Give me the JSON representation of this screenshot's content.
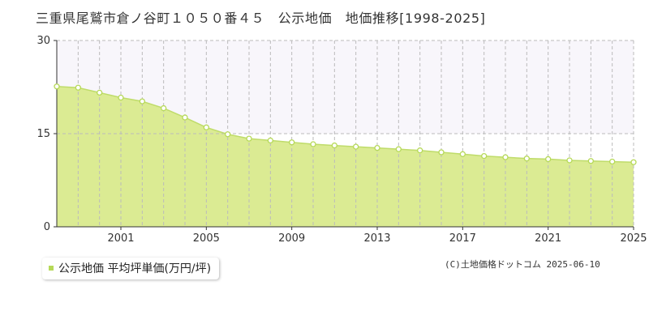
{
  "title": "三重県尾鷲市倉ノ谷町１０５０番４５　公示地価　地価推移[1998-2025]",
  "legend": {
    "label": "公示地価 平均坪単価(万円/坪)"
  },
  "copyright": "(C)土地価格ドットコム 2025-06-10",
  "colors": {
    "fill": "#dbeb93",
    "line": "#bfdc6a",
    "marker": "#b6d958",
    "grid": "#bbbbbb",
    "band": "#f8f6fb"
  },
  "chart_data": {
    "type": "area",
    "title": "",
    "xlabel": "",
    "ylabel": "",
    "xlim": [
      1998,
      2025
    ],
    "ylim": [
      0,
      30
    ],
    "y_ticks": [
      0,
      15,
      30
    ],
    "x_ticks": [
      2001,
      2005,
      2009,
      2013,
      2017,
      2021,
      2025
    ],
    "grid": true,
    "series": [
      {
        "x": [
          1998,
          1999,
          2000,
          2001,
          2002,
          2003,
          2004,
          2005,
          2006,
          2007,
          2008,
          2009,
          2010,
          2011,
          2012,
          2013,
          2014,
          2015,
          2016,
          2017,
          2018,
          2019,
          2020,
          2021,
          2022,
          2023,
          2024,
          2025
        ],
        "values": [
          22.6,
          22.4,
          21.6,
          20.8,
          20.2,
          19.1,
          17.6,
          16.0,
          14.9,
          14.2,
          13.9,
          13.6,
          13.3,
          13.1,
          12.9,
          12.7,
          12.5,
          12.3,
          12.0,
          11.7,
          11.4,
          11.2,
          11.0,
          10.9,
          10.7,
          10.6,
          10.5,
          10.4
        ]
      }
    ]
  }
}
